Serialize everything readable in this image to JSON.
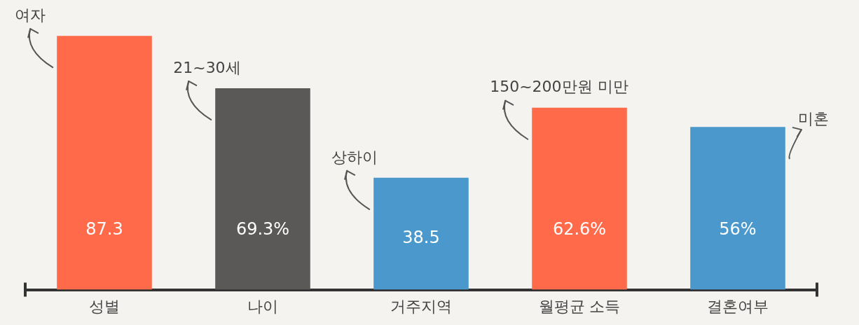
{
  "chart_data": {
    "type": "bar",
    "categories": [
      "성별",
      "나이",
      "거주지역",
      "월평균 소득",
      "결혼여부"
    ],
    "values": [
      87.3,
      69.3,
      38.5,
      62.6,
      56
    ],
    "value_labels": [
      "87.3",
      "69.3%",
      "38.5",
      "62.6%",
      "56%"
    ],
    "colors": [
      "#ff6b4a",
      "#5a5958",
      "#4a98cc",
      "#ff6b4a",
      "#4a98cc"
    ],
    "annotations": [
      "여자",
      "21~30세",
      "상하이",
      "150~200만원 미만",
      "미혼"
    ],
    "grid": false,
    "legend": false
  }
}
